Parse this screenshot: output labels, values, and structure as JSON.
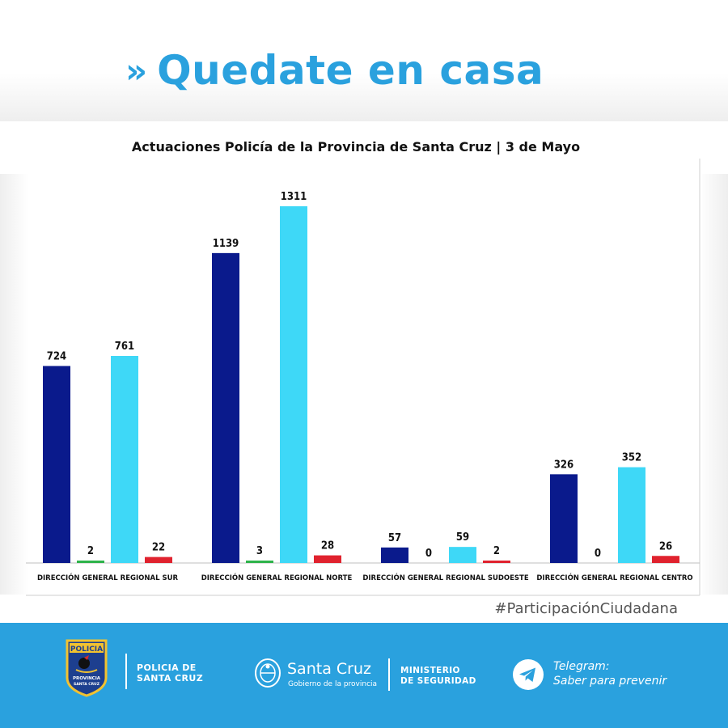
{
  "header": {
    "chevrons": "»",
    "title": "Quedate en casa"
  },
  "chart_data": {
    "type": "bar",
    "title": "Actuaciones Policía de la Provincia de Santa Cruz | 3 de Mayo",
    "categories": [
      "DIRECCIÓN GENERAL REGIONAL SUR",
      "DIRECCIÓN GENERAL REGIONAL NORTE",
      "DIRECCIÓN GENERAL REGIONAL SUDOESTE",
      "DIRECCIÓN GENERAL REGIONAL CENTRO"
    ],
    "series": [
      {
        "color": "#0a1a8c",
        "values": [
          724,
          1139,
          57,
          326
        ]
      },
      {
        "color": "#2db34a",
        "values": [
          2,
          3,
          0,
          0
        ]
      },
      {
        "color": "#3ed8f7",
        "values": [
          761,
          1311,
          59,
          352
        ]
      },
      {
        "color": "#e0222e",
        "values": [
          22,
          28,
          2,
          26
        ]
      }
    ],
    "xlabel": "",
    "ylabel": "",
    "ylim": [
      0,
      1311
    ],
    "grid": false,
    "legend": "none",
    "data_labels": true
  },
  "hashtag": "#ParticipaciónCiudadana",
  "footer": {
    "police_logo_text": [
      "POLICIA",
      "PROVINCIA",
      "SANTA CRUZ"
    ],
    "police_line1": "POLICIA DE",
    "police_line2": "SANTA CRUZ",
    "province_name": "Santa Cruz",
    "province_sub": "Gobierno de la provincia",
    "ministry_line1": "MINISTERIO",
    "ministry_line2": "DE SEGURIDAD",
    "telegram_title": "Telegram:",
    "telegram_sub": "Saber para prevenir"
  }
}
